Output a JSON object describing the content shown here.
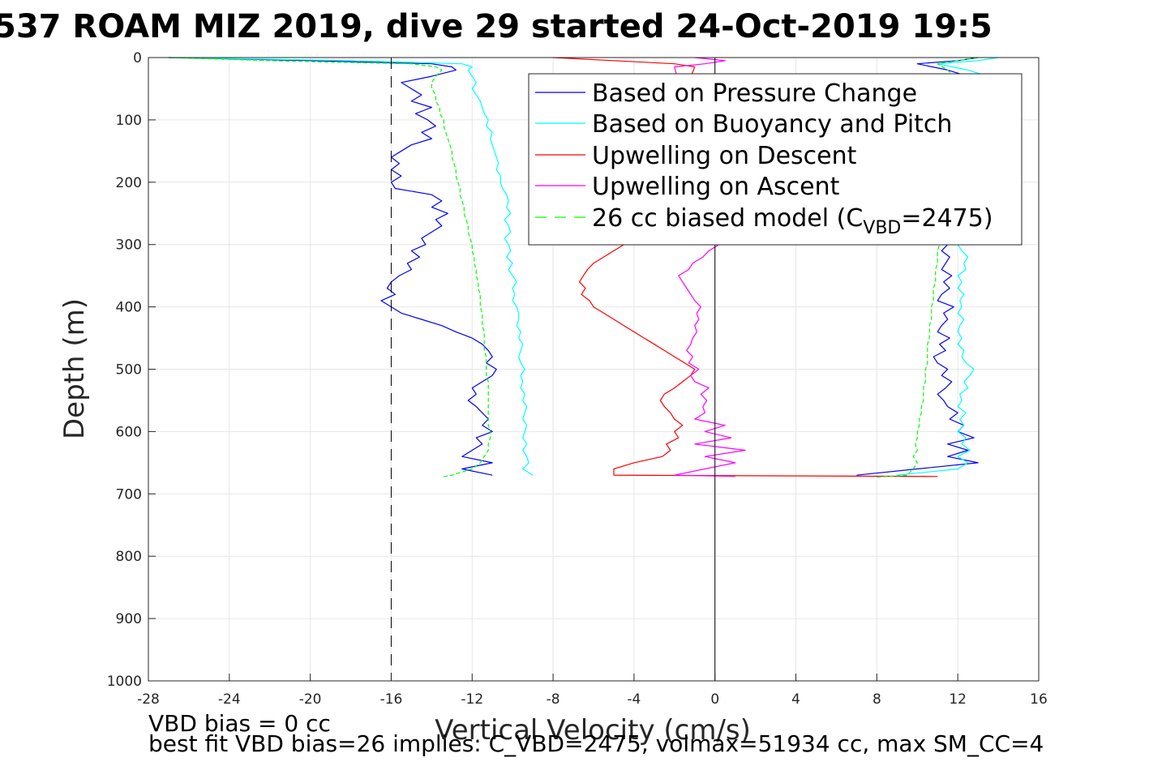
{
  "chart_data": {
    "type": "line",
    "title": "537 ROAM MIZ 2019, dive 29 started 24-Oct-2019 19:5",
    "xlabel": "Vertical Velocity (cm/s)",
    "ylabel": "Depth (m)",
    "xlim": [
      -28,
      16
    ],
    "ylim": [
      0,
      1000
    ],
    "y_reversed": true,
    "grid": true,
    "xticks": [
      "-28",
      "-24",
      "-20",
      "-16",
      "-12",
      "-8",
      "-4",
      "0",
      "4",
      "8",
      "12",
      "16"
    ],
    "yticks": [
      "0",
      "100",
      "200",
      "300",
      "400",
      "500",
      "600",
      "700",
      "800",
      "900",
      "1000"
    ],
    "legend_position": "top-right",
    "legend": [
      {
        "label": "Based on Pressure Change",
        "color": "#0000ff",
        "style": "solid"
      },
      {
        "label": "Based on Buoyancy and Pitch",
        "color": "#00ffff",
        "style": "solid"
      },
      {
        "label": "Upwelling on Descent",
        "color": "#ff0000",
        "style": "solid"
      },
      {
        "label": "Upwelling on Ascent",
        "color": "#ff00ff",
        "style": "solid"
      },
      {
        "label_main": "26 cc biased model (C",
        "label_sub": "VBD",
        "label_tail": "=2475)",
        "color": "#00ff00",
        "style": "dashed"
      }
    ],
    "reference_lines": [
      {
        "axis": "x",
        "value": -16,
        "style": "dashed",
        "color": "#000000"
      },
      {
        "axis": "x",
        "value": 0,
        "style": "solid",
        "color": "#000000"
      }
    ],
    "series": [
      {
        "key": "pressure_descent",
        "color": "#0000ff",
        "depth": [
          0,
          5,
          10,
          15,
          20,
          30,
          40,
          50,
          60,
          70,
          80,
          90,
          100,
          110,
          120,
          130,
          140,
          150,
          160,
          170,
          180,
          190,
          200,
          210,
          220,
          230,
          240,
          250,
          260,
          270,
          280,
          290,
          300,
          310,
          320,
          330,
          340,
          350,
          360,
          370,
          380,
          390,
          400,
          410,
          420,
          430,
          440,
          450,
          460,
          470,
          480,
          490,
          500,
          510,
          520,
          530,
          540,
          550,
          560,
          570,
          580,
          590,
          600,
          610,
          620,
          630,
          640,
          650,
          660,
          670
        ],
        "x": [
          -27,
          -20,
          -14,
          -13,
          -12.8,
          -14,
          -15.5,
          -15,
          -14.5,
          -15,
          -14,
          -14.8,
          -14.2,
          -13.8,
          -14.5,
          -14,
          -15,
          -15.5,
          -16,
          -15.6,
          -16,
          -15.5,
          -16,
          -15.8,
          -14,
          -13.5,
          -14,
          -13.2,
          -13.8,
          -13.5,
          -14,
          -14.5,
          -14.3,
          -15,
          -14.6,
          -15.2,
          -15,
          -15.6,
          -16,
          -16.2,
          -15.8,
          -16.5,
          -16,
          -15.5,
          -14.5,
          -13.5,
          -12.8,
          -12,
          -11.5,
          -11.2,
          -11,
          -11.3,
          -10.8,
          -11,
          -11.5,
          -12,
          -11.8,
          -12.2,
          -11.8,
          -11.5,
          -11.2,
          -11.5,
          -11,
          -11.8,
          -11.5,
          -12,
          -12.5,
          -11,
          -12.5,
          -11
        ]
      },
      {
        "key": "pressure_ascent",
        "color": "#0000ff",
        "depth": [
          670,
          660,
          650,
          640,
          630,
          620,
          610,
          600,
          590,
          580,
          570,
          560,
          550,
          540,
          530,
          520,
          510,
          500,
          490,
          480,
          470,
          460,
          450,
          440,
          430,
          420,
          410,
          400,
          390,
          380,
          370,
          360,
          350,
          340,
          330,
          320,
          310,
          300,
          40,
          30,
          20,
          10,
          5,
          0
        ],
        "x": [
          7,
          10,
          13,
          11.5,
          12.5,
          11.5,
          12.8,
          12,
          12.3,
          11.6,
          12,
          11.5,
          11.3,
          11,
          11.4,
          11.7,
          11.2,
          11.5,
          11,
          10.8,
          11.4,
          11.1,
          11.6,
          11,
          11.2,
          11.5,
          11.3,
          11.8,
          11,
          11.2,
          11.6,
          11.3,
          11.7,
          11.2,
          11.4,
          11.6,
          11.2,
          11.5,
          12,
          12.5,
          11.5,
          10,
          12,
          13
        ]
      },
      {
        "key": "buoyancy_descent",
        "color": "#00ffff",
        "depth": [
          0,
          5,
          10,
          15,
          20,
          30,
          40,
          50,
          60,
          70,
          80,
          90,
          100,
          110,
          120,
          130,
          140,
          150,
          160,
          170,
          180,
          190,
          200,
          210,
          220,
          230,
          240,
          250,
          260,
          270,
          280,
          290,
          300,
          310,
          320,
          330,
          340,
          350,
          360,
          370,
          380,
          390,
          400,
          410,
          420,
          430,
          440,
          450,
          460,
          470,
          480,
          490,
          500,
          510,
          520,
          530,
          540,
          550,
          560,
          570,
          580,
          590,
          600,
          610,
          620,
          630,
          640,
          650,
          660,
          670
        ],
        "x": [
          -27,
          -18,
          -12.5,
          -12,
          -12.2,
          -12,
          -11.8,
          -12,
          -11.8,
          -11.6,
          -11.5,
          -11.4,
          -11.2,
          -11.3,
          -11,
          -11.1,
          -11,
          -10.9,
          -10.8,
          -10.7,
          -10.8,
          -10.6,
          -10.6,
          -10.5,
          -10.3,
          -10.2,
          -10.3,
          -10.1,
          -10.4,
          -10.2,
          -10.1,
          -10.4,
          -10.2,
          -10.1,
          -10.3,
          -10,
          -10.2,
          -10,
          -9.8,
          -10,
          -9.9,
          -10,
          -9.8,
          -9.7,
          -9.7,
          -9.8,
          -9.6,
          -9.7,
          -9.5,
          -9.6,
          -9.7,
          -9.6,
          -9.4,
          -9.6,
          -9.5,
          -9.6,
          -9.4,
          -9.5,
          -9.3,
          -9.4,
          -9.5,
          -9.3,
          -9.4,
          -9.5,
          -9.3,
          -9.5,
          -9.3,
          -9.2,
          -9.5,
          -9
        ]
      },
      {
        "key": "buoyancy_ascent",
        "color": "#00ffff",
        "depth": [
          670,
          660,
          650,
          640,
          630,
          620,
          610,
          600,
          590,
          580,
          570,
          560,
          550,
          540,
          530,
          520,
          510,
          500,
          490,
          480,
          470,
          460,
          450,
          440,
          430,
          420,
          410,
          400,
          390,
          380,
          370,
          360,
          350,
          340,
          330,
          320,
          310,
          300,
          40,
          30,
          20,
          10,
          5,
          0
        ],
        "x": [
          9,
          12,
          12.5,
          12,
          12.6,
          12.2,
          12.4,
          12,
          12.3,
          12.1,
          12.4,
          12,
          12.2,
          12.1,
          12.5,
          12.3,
          12.6,
          12.8,
          12.4,
          12.2,
          12.3,
          12,
          12.2,
          12,
          12.1,
          12.3,
          12,
          12.2,
          12.1,
          12.3,
          12,
          12.2,
          12,
          12.4,
          12.3,
          12.5,
          12.2,
          12,
          13,
          13.5,
          12.5,
          11,
          13,
          14
        ]
      },
      {
        "key": "upwelling_descent",
        "color": "#ff0000",
        "depth": [
          0,
          5,
          10,
          15,
          300,
          310,
          320,
          330,
          340,
          350,
          360,
          370,
          380,
          390,
          400,
          410,
          420,
          430,
          440,
          450,
          460,
          470,
          480,
          490,
          500,
          510,
          520,
          530,
          540,
          550,
          560,
          570,
          580,
          590,
          600,
          610,
          620,
          630,
          640,
          650,
          660,
          670,
          672
        ],
        "x": [
          -8,
          -5,
          -2,
          -1,
          -4.5,
          -5,
          -5.5,
          -6,
          -6.3,
          -6.5,
          -6.7,
          -6.4,
          -6.6,
          -6.2,
          -6,
          -5.5,
          -5,
          -4.5,
          -4,
          -3.5,
          -3,
          -2.5,
          -2,
          -1.5,
          -1,
          -1.2,
          -1.6,
          -2,
          -2.5,
          -2.7,
          -2.5,
          -2.2,
          -2,
          -1.6,
          -2,
          -1.8,
          -2.4,
          -2.2,
          -2.6,
          -4,
          -5,
          -5,
          11
        ]
      },
      {
        "key": "upwelling_ascent",
        "color": "#ff00ff",
        "depth": [
          672,
          670,
          660,
          650,
          640,
          630,
          620,
          610,
          600,
          590,
          580,
          570,
          560,
          550,
          540,
          530,
          520,
          510,
          500,
          490,
          480,
          470,
          460,
          450,
          440,
          430,
          420,
          410,
          400,
          390,
          380,
          370,
          360,
          350,
          340,
          330,
          320,
          310,
          300,
          15,
          10,
          5,
          0
        ],
        "x": [
          1,
          -2,
          -0.5,
          1,
          -0.5,
          1.5,
          -1,
          0.8,
          -0.5,
          0.5,
          -1,
          -0.5,
          -0.6,
          -0.4,
          -0.7,
          -0.3,
          -1,
          -1.2,
          -0.8,
          -1.3,
          -1.1,
          -1.4,
          -1.2,
          -1.1,
          -0.9,
          -1,
          -0.8,
          -0.9,
          -0.7,
          -1,
          -1.2,
          -1.4,
          -1.6,
          -1.8,
          -1.3,
          -1.1,
          -0.6,
          -0.3,
          0.2,
          -2,
          -0.5,
          0.5,
          -1
        ]
      },
      {
        "key": "model_descent",
        "color": "#00ff00",
        "dashed": true,
        "depth": [
          0,
          5,
          10,
          15,
          20,
          30,
          40,
          50,
          60,
          70,
          80,
          90,
          100,
          110,
          120,
          130,
          140,
          150,
          160,
          170,
          180,
          190,
          200,
          210,
          220,
          230,
          240,
          250,
          260,
          270,
          280,
          290,
          300,
          310,
          320,
          330,
          340,
          350,
          360,
          370,
          380,
          390,
          400,
          410,
          420,
          430,
          440,
          450,
          460,
          470,
          480,
          490,
          500,
          510,
          520,
          530,
          540,
          550,
          560,
          570,
          580,
          590,
          600,
          610,
          620,
          630,
          640,
          650,
          660,
          670,
          673
        ],
        "x": [
          -27,
          -22,
          -15,
          -13.8,
          -13.5,
          -13.8,
          -14,
          -14,
          -13.8,
          -13.8,
          -13.6,
          -13.6,
          -13.4,
          -13.4,
          -13.3,
          -13.2,
          -13.1,
          -13,
          -13,
          -12.9,
          -12.8,
          -12.8,
          -12.7,
          -12.6,
          -12.6,
          -12.5,
          -12.4,
          -12.4,
          -12.3,
          -12.2,
          -12.2,
          -12.1,
          -12,
          -12,
          -11.9,
          -11.9,
          -11.8,
          -11.8,
          -11.7,
          -11.7,
          -11.6,
          -11.6,
          -11.6,
          -11.5,
          -11.5,
          -11.5,
          -11.4,
          -11.4,
          -11.4,
          -11.4,
          -11.3,
          -11.3,
          -11.3,
          -11.3,
          -11.2,
          -11.2,
          -11.2,
          -11.2,
          -11.2,
          -11.2,
          -11.2,
          -11.2,
          -11.1,
          -11.1,
          -11.2,
          -11.2,
          -11.4,
          -11.6,
          -12,
          -13,
          -13.5
        ]
      },
      {
        "key": "model_ascent",
        "color": "#00ff00",
        "dashed": true,
        "depth": [
          673,
          670,
          660,
          650,
          640,
          630,
          620,
          610,
          600,
          590,
          580,
          570,
          560,
          550,
          540,
          530,
          520,
          510,
          500,
          490,
          480,
          470,
          460,
          450,
          440,
          430,
          420,
          410,
          400,
          390,
          380,
          370,
          360,
          350,
          340,
          330,
          320,
          310,
          300,
          40,
          30,
          20,
          10,
          5,
          0
        ],
        "x": [
          8,
          9.5,
          9.8,
          10,
          9.8,
          10,
          9.9,
          10,
          10,
          10.1,
          10.1,
          10.2,
          10.2,
          10.3,
          10.3,
          10.3,
          10.4,
          10.4,
          10.4,
          10.5,
          10.5,
          10.5,
          10.5,
          10.6,
          10.6,
          10.6,
          10.7,
          10.7,
          10.7,
          10.8,
          10.8,
          10.8,
          10.9,
          10.9,
          10.9,
          11,
          11,
          11,
          11.1,
          11.5,
          11.8,
          11.5,
          11,
          12,
          13
        ]
      }
    ]
  },
  "notes": {
    "line1": "VBD bias = 0 cc",
    "line2": "best fit VBD bias=26 implies: C_VBD=2475, volmax=51934 cc, max SM_CC=4"
  }
}
